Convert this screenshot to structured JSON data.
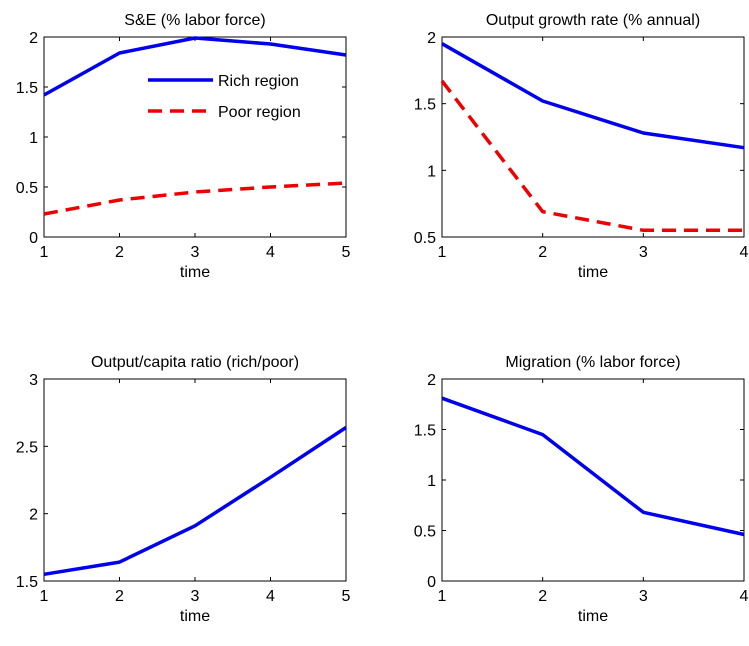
{
  "chart_data": [
    {
      "type": "line",
      "title": "S&E (% labor force)",
      "xlabel": "time",
      "ylabel": "",
      "xlim": [
        1,
        5
      ],
      "ylim": [
        0,
        2
      ],
      "xticks": [
        1,
        2,
        3,
        4,
        5
      ],
      "yticks": [
        0,
        0.5,
        1,
        1.5,
        2
      ],
      "grid": false,
      "legend": "top-right",
      "series": [
        {
          "name": "Rich region",
          "color": "#0000ee",
          "dash": "solid",
          "x": [
            1,
            2,
            3,
            4,
            5
          ],
          "values": [
            1.42,
            1.84,
            1.99,
            1.93,
            1.82
          ]
        },
        {
          "name": "Poor region",
          "color": "#ee0000",
          "dash": "dashed",
          "x": [
            1,
            2,
            3,
            4,
            5
          ],
          "values": [
            0.23,
            0.37,
            0.45,
            0.5,
            0.54
          ]
        }
      ]
    },
    {
      "type": "line",
      "title": "Output growth rate (% annual)",
      "xlabel": "time",
      "ylabel": "",
      "xlim": [
        1,
        4
      ],
      "ylim": [
        0.5,
        2
      ],
      "xticks": [
        1,
        2,
        3,
        4
      ],
      "yticks": [
        0.5,
        1,
        1.5,
        2
      ],
      "grid": false,
      "series": [
        {
          "color": "#0000ee",
          "dash": "solid",
          "x": [
            1,
            2,
            3,
            4
          ],
          "values": [
            1.95,
            1.52,
            1.28,
            1.17
          ]
        },
        {
          "color": "#ee0000",
          "dash": "dashed",
          "x": [
            1,
            2,
            3,
            4
          ],
          "values": [
            1.67,
            0.69,
            0.55,
            0.55
          ]
        }
      ]
    },
    {
      "type": "line",
      "title": "Output/capita ratio (rich/poor)",
      "xlabel": "time",
      "ylabel": "",
      "xlim": [
        1,
        5
      ],
      "ylim": [
        1.5,
        3
      ],
      "xticks": [
        1,
        2,
        3,
        4,
        5
      ],
      "yticks": [
        1.5,
        2,
        2.5,
        3
      ],
      "grid": false,
      "series": [
        {
          "color": "#0000ee",
          "dash": "solid",
          "x": [
            1,
            2,
            3,
            4,
            5
          ],
          "values": [
            1.55,
            1.64,
            1.91,
            2.27,
            2.64
          ]
        }
      ]
    },
    {
      "type": "line",
      "title": "Migration (% labor force)",
      "xlabel": "time",
      "ylabel": "",
      "xlim": [
        1,
        4
      ],
      "ylim": [
        0,
        2
      ],
      "xticks": [
        1,
        2,
        3,
        4
      ],
      "yticks": [
        0,
        0.5,
        1,
        1.5,
        2
      ],
      "grid": false,
      "series": [
        {
          "color": "#0000ee",
          "dash": "solid",
          "x": [
            1,
            2,
            3,
            4
          ],
          "values": [
            1.81,
            1.45,
            0.68,
            0.46
          ]
        }
      ]
    }
  ]
}
